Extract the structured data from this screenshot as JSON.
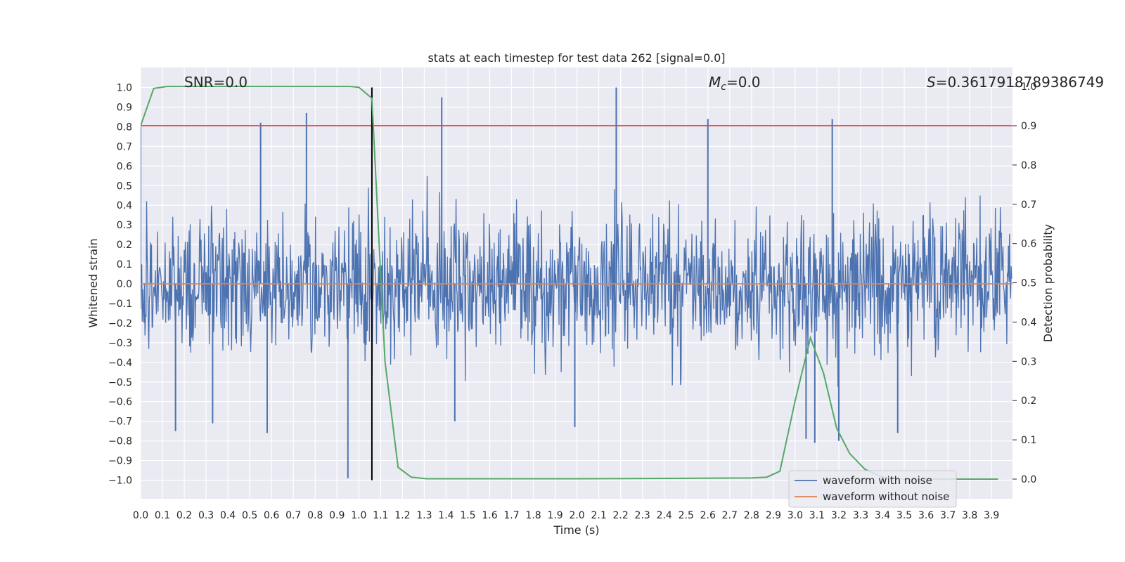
{
  "chart_data": {
    "type": "line",
    "title": "stats at each timestep for test data 262 [signal=0.0]",
    "xlabel": "Time (s)",
    "ylabel": "Whitened strain",
    "ylabel_right": "Detection probability",
    "xlim": [
      0.0,
      3.995
    ],
    "ylim": [
      -1.1,
      1.1
    ],
    "ylim_right": [
      -0.05,
      1.05
    ],
    "x_ticks": [
      "0.0",
      "0.1",
      "0.2",
      "0.3",
      "0.4",
      "0.5",
      "0.6",
      "0.7",
      "0.8",
      "0.9",
      "1.0",
      "1.1",
      "1.2",
      "1.3",
      "1.4",
      "1.5",
      "1.6",
      "1.7",
      "1.8",
      "1.9",
      "2.0",
      "2.1",
      "2.2",
      "2.3",
      "2.4",
      "2.5",
      "2.6",
      "2.7",
      "2.8",
      "2.9",
      "3.0",
      "3.1",
      "3.2",
      "3.3",
      "3.4",
      "3.5",
      "3.6",
      "3.7",
      "3.8",
      "3.9"
    ],
    "y_ticks": [
      "1.0",
      "0.9",
      "0.8",
      "0.7",
      "0.6",
      "0.5",
      "0.4",
      "0.3",
      "0.2",
      "0.1",
      "0.0",
      "−0.1",
      "−0.2",
      "−0.3",
      "−0.4",
      "−0.5",
      "−0.6",
      "−0.7",
      "−0.8",
      "−0.9",
      "−1.0"
    ],
    "y_ticks_right": [
      "1.0",
      "0.9",
      "0.8",
      "0.7",
      "0.6",
      "0.5",
      "0.4",
      "0.3",
      "0.2",
      "0.1",
      "0.0"
    ],
    "grid": true,
    "legend_position": "bottom-right",
    "annotations": {
      "snr_label": "SNR=0.0",
      "mc_symbol": "M",
      "mc_sub": "c",
      "mc_value": "=0.0",
      "s_symbol": "S",
      "s_value": "=0.3617918789386749"
    },
    "series": [
      {
        "name": "waveform with noise",
        "color": "#4c72b0",
        "axis": "left",
        "noise_amplitude_typical": 0.45,
        "spikes": [
          {
            "x": 0.0,
            "y": 0.8
          },
          {
            "x": 0.55,
            "y": 0.82
          },
          {
            "x": 0.76,
            "y": 0.87
          },
          {
            "x": 0.95,
            "y": -0.99
          },
          {
            "x": 1.38,
            "y": 0.95
          },
          {
            "x": 1.44,
            "y": -0.7
          },
          {
            "x": 1.99,
            "y": -0.73
          },
          {
            "x": 2.18,
            "y": 1.0
          },
          {
            "x": 2.6,
            "y": 0.84
          },
          {
            "x": 3.05,
            "y": -0.79
          },
          {
            "x": 3.09,
            "y": -0.81
          },
          {
            "x": 3.17,
            "y": 0.84
          },
          {
            "x": 3.2,
            "y": -0.8
          },
          {
            "x": 0.16,
            "y": -0.75
          },
          {
            "x": 0.33,
            "y": -0.71
          },
          {
            "x": 0.58,
            "y": -0.76
          },
          {
            "x": 3.47,
            "y": -0.76
          }
        ]
      },
      {
        "name": "waveform without noise",
        "color": "#dd8452",
        "axis": "left",
        "x": [
          0.0,
          3.995
        ],
        "y": [
          0.0,
          0.0
        ]
      },
      {
        "name": "",
        "color": "#55a868",
        "axis": "right",
        "x": [
          0.0,
          0.06,
          0.12,
          0.2,
          0.3,
          0.5,
          0.7,
          0.9,
          0.96,
          1.0,
          1.06,
          1.12,
          1.18,
          1.24,
          1.31,
          1.5,
          2.0,
          2.5,
          2.8,
          2.87,
          2.93,
          3.0,
          3.07,
          3.13,
          3.19,
          3.25,
          3.32,
          3.4,
          3.5,
          3.6,
          3.7,
          3.8,
          3.93
        ],
        "y": [
          0.9,
          0.995,
          1.0,
          1.0,
          1.0,
          1.0,
          1.0,
          1.0,
          1.0,
          0.998,
          0.97,
          0.3,
          0.03,
          0.005,
          0.001,
          0.001,
          0.001,
          0.002,
          0.003,
          0.005,
          0.02,
          0.2,
          0.36,
          0.27,
          0.13,
          0.065,
          0.025,
          0.005,
          0.0,
          0.0,
          0.0,
          0.0,
          0.0
        ]
      },
      {
        "name": "",
        "color": "#c44e52",
        "axis": "right",
        "x": [
          0.0,
          3.995
        ],
        "y": [
          0.9,
          0.9
        ]
      }
    ],
    "vertical_marker": {
      "x": 1.06,
      "y_range": [
        -1.0,
        1.0
      ],
      "color": "#000000"
    },
    "legend": [
      {
        "label": "waveform with noise",
        "color": "#4c72b0"
      },
      {
        "label": "waveform without noise",
        "color": "#dd8452"
      }
    ]
  }
}
